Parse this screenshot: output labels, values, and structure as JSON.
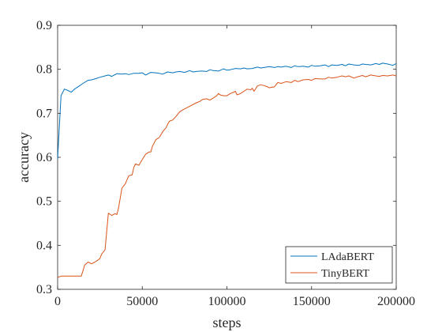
{
  "chart_data": {
    "type": "line",
    "xlabel": "steps",
    "ylabel": "accuracy",
    "xlim": [
      0,
      200000
    ],
    "ylim": [
      0.3,
      0.9
    ],
    "xticks": [
      0,
      50000,
      100000,
      150000,
      200000
    ],
    "yticks": [
      0.3,
      0.4,
      0.5,
      0.6,
      0.7,
      0.8,
      0.9
    ],
    "grid": false,
    "legend_position": "bottom-right",
    "series": [
      {
        "name": "LAdaBERT",
        "color": "#0072BD",
        "x": [
          0,
          2000,
          4000,
          6000,
          8000,
          10000,
          12000,
          15000,
          18000,
          20000,
          22000,
          25000,
          28000,
          30000,
          32000,
          35000,
          38000,
          40000,
          42000,
          45000,
          48000,
          50000,
          52000,
          55000,
          58000,
          60000,
          62000,
          65000,
          68000,
          70000,
          72000,
          75000,
          78000,
          80000,
          82000,
          85000,
          88000,
          90000,
          92000,
          95000,
          98000,
          100000,
          102000,
          105000,
          108000,
          110000,
          112000,
          115000,
          118000,
          120000,
          122000,
          125000,
          128000,
          130000,
          132000,
          135000,
          138000,
          140000,
          142000,
          145000,
          148000,
          150000,
          152000,
          155000,
          158000,
          160000,
          162000,
          165000,
          168000,
          170000,
          172000,
          175000,
          178000,
          180000,
          182000,
          185000,
          188000,
          190000,
          192000,
          195000,
          198000,
          200000
        ],
        "y": [
          0.597,
          0.74,
          0.755,
          0.752,
          0.748,
          0.755,
          0.76,
          0.768,
          0.775,
          0.776,
          0.778,
          0.782,
          0.785,
          0.787,
          0.784,
          0.79,
          0.789,
          0.79,
          0.788,
          0.791,
          0.791,
          0.792,
          0.787,
          0.793,
          0.792,
          0.791,
          0.789,
          0.794,
          0.792,
          0.794,
          0.795,
          0.793,
          0.797,
          0.794,
          0.795,
          0.796,
          0.795,
          0.799,
          0.797,
          0.796,
          0.801,
          0.798,
          0.799,
          0.802,
          0.801,
          0.803,
          0.801,
          0.802,
          0.805,
          0.803,
          0.804,
          0.806,
          0.804,
          0.806,
          0.805,
          0.807,
          0.804,
          0.808,
          0.806,
          0.807,
          0.805,
          0.809,
          0.807,
          0.808,
          0.81,
          0.806,
          0.81,
          0.809,
          0.811,
          0.808,
          0.812,
          0.81,
          0.809,
          0.812,
          0.811,
          0.81,
          0.813,
          0.811,
          0.814,
          0.812,
          0.809,
          0.813
        ]
      },
      {
        "name": "TinyBERT",
        "color": "#D95319",
        "x": [
          0,
          2000,
          4000,
          6000,
          8000,
          10000,
          12000,
          14000,
          16000,
          18000,
          20000,
          22000,
          24000,
          25000,
          26000,
          28000,
          30000,
          32000,
          34000,
          35000,
          36000,
          38000,
          40000,
          42000,
          44000,
          45000,
          46000,
          48000,
          50000,
          52000,
          54000,
          55000,
          56000,
          58000,
          60000,
          62000,
          64000,
          65000,
          66000,
          68000,
          70000,
          72000,
          74000,
          75000,
          76000,
          78000,
          80000,
          82000,
          84000,
          85000,
          86000,
          88000,
          90000,
          92000,
          94000,
          95000,
          96000,
          98000,
          100000,
          102000,
          104000,
          105000,
          106000,
          108000,
          110000,
          112000,
          114000,
          115000,
          116000,
          118000,
          120000,
          122000,
          124000,
          125000,
          128000,
          130000,
          132000,
          135000,
          138000,
          140000,
          142000,
          145000,
          148000,
          150000,
          152000,
          155000,
          158000,
          160000,
          162000,
          165000,
          168000,
          170000,
          172000,
          175000,
          178000,
          180000,
          182000,
          185000,
          188000,
          190000,
          192000,
          195000,
          198000,
          200000
        ],
        "y": [
          0.327,
          0.33,
          0.33,
          0.33,
          0.33,
          0.33,
          0.33,
          0.33,
          0.355,
          0.362,
          0.358,
          0.362,
          0.367,
          0.37,
          0.38,
          0.39,
          0.473,
          0.468,
          0.472,
          0.47,
          0.485,
          0.53,
          0.54,
          0.558,
          0.56,
          0.577,
          0.585,
          0.582,
          0.595,
          0.607,
          0.612,
          0.612,
          0.625,
          0.64,
          0.645,
          0.658,
          0.667,
          0.675,
          0.682,
          0.685,
          0.693,
          0.703,
          0.708,
          0.71,
          0.712,
          0.716,
          0.72,
          0.724,
          0.727,
          0.73,
          0.732,
          0.733,
          0.73,
          0.735,
          0.74,
          0.745,
          0.742,
          0.74,
          0.74,
          0.745,
          0.748,
          0.75,
          0.742,
          0.745,
          0.75,
          0.755,
          0.753,
          0.757,
          0.75,
          0.762,
          0.765,
          0.763,
          0.76,
          0.758,
          0.76,
          0.77,
          0.768,
          0.772,
          0.77,
          0.775,
          0.772,
          0.776,
          0.777,
          0.775,
          0.779,
          0.778,
          0.778,
          0.782,
          0.78,
          0.782,
          0.785,
          0.783,
          0.785,
          0.78,
          0.784,
          0.786,
          0.783,
          0.787,
          0.785,
          0.784,
          0.786,
          0.785,
          0.787,
          0.785
        ]
      }
    ]
  }
}
